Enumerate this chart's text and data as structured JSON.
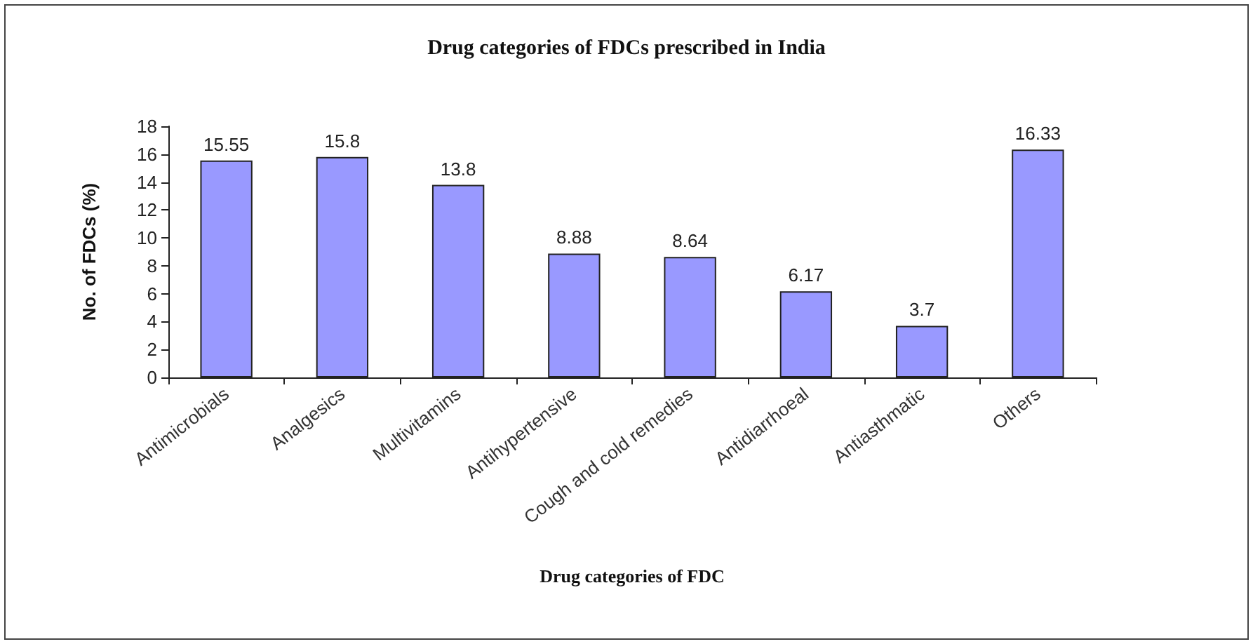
{
  "chart_data": {
    "type": "bar",
    "title": "Drug categories of FDCs prescribed in India",
    "xlabel": "Drug categories of FDC",
    "ylabel": "No. of FDCs (%)",
    "categories": [
      "Antimicrobials",
      "Analgesics",
      "Multivitamins",
      "Antihypertensive",
      "Cough and cold remedies",
      "Antidiarrhoeal",
      "Antiasthmatic",
      "Others"
    ],
    "values": [
      15.55,
      15.8,
      13.8,
      8.88,
      8.64,
      6.17,
      3.7,
      16.33
    ],
    "color": "#9999ff",
    "ylim": [
      0,
      18
    ],
    "yticks": [
      0,
      2,
      4,
      6,
      8,
      10,
      12,
      14,
      16,
      18
    ],
    "data_labels": true,
    "grid": false
  }
}
